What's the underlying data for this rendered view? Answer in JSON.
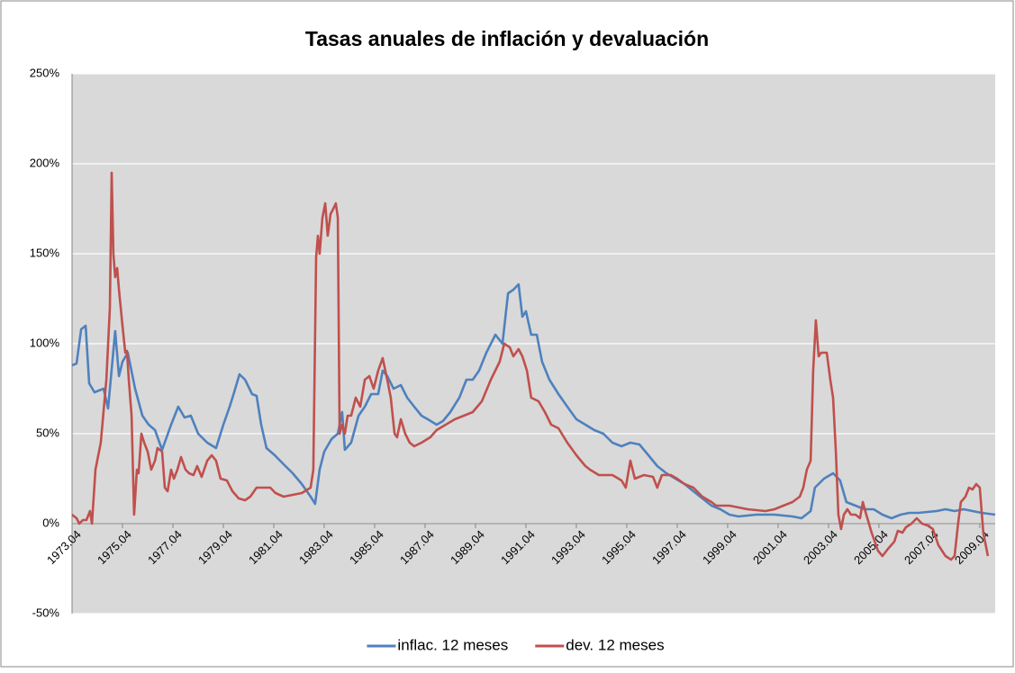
{
  "chart_data": {
    "type": "line",
    "title": "Tasas anuales de inflación y devaluación",
    "xlim": [
      1973.25,
      2009.86
    ],
    "xticks": [
      {
        "value": 1973.25,
        "label": "1973.04"
      },
      {
        "value": 1975.25,
        "label": "1975.04"
      },
      {
        "value": 1977.25,
        "label": "1977.04"
      },
      {
        "value": 1979.25,
        "label": "1979.04"
      },
      {
        "value": 1981.25,
        "label": "1981.04"
      },
      {
        "value": 1983.25,
        "label": "1983.04"
      },
      {
        "value": 1985.25,
        "label": "1985.04"
      },
      {
        "value": 1987.25,
        "label": "1987.04"
      },
      {
        "value": 1989.25,
        "label": "1989.04"
      },
      {
        "value": 1991.25,
        "label": "1991.04"
      },
      {
        "value": 1993.25,
        "label": "1993.04"
      },
      {
        "value": 1995.25,
        "label": "1995.04"
      },
      {
        "value": 1997.25,
        "label": "1997.04"
      },
      {
        "value": 1999.25,
        "label": "1999.04"
      },
      {
        "value": 2001.25,
        "label": "2001.04"
      },
      {
        "value": 2003.25,
        "label": "2003.04"
      },
      {
        "value": 2005.25,
        "label": "2005.04"
      },
      {
        "value": 2007.25,
        "label": "2007.04"
      },
      {
        "value": 2009.25,
        "label": "2009.04"
      }
    ],
    "ylim": [
      -50,
      250
    ],
    "yticks": [
      {
        "value": -50,
        "label": "-50%"
      },
      {
        "value": 0,
        "label": "0%"
      },
      {
        "value": 50,
        "label": "50%"
      },
      {
        "value": 100,
        "label": "100%"
      },
      {
        "value": 150,
        "label": "150%"
      },
      {
        "value": 200,
        "label": "200%"
      },
      {
        "value": 250,
        "label": "250%"
      }
    ],
    "grid": true,
    "legend": "bottom",
    "series": [
      {
        "name": "inflac. 12 meses",
        "color": "#4f81bd",
        "x": [
          1973.25,
          1973.43,
          1973.61,
          1973.79,
          1973.93,
          1974.14,
          1974.5,
          1974.68,
          1974.96,
          1975.11,
          1975.25,
          1975.46,
          1975.75,
          1976.04,
          1976.29,
          1976.54,
          1976.82,
          1977.18,
          1977.46,
          1977.71,
          1977.96,
          1978.25,
          1978.61,
          1978.96,
          1979.25,
          1979.5,
          1979.68,
          1979.89,
          1980.11,
          1980.39,
          1980.57,
          1980.75,
          1980.96,
          1981.29,
          1981.64,
          1982.0,
          1982.36,
          1982.71,
          1982.89,
          1983.07,
          1983.25,
          1983.54,
          1983.79,
          1983.96,
          1984.07,
          1984.32,
          1984.61,
          1984.86,
          1985.11,
          1985.39,
          1985.57,
          1985.75,
          1986.0,
          1986.29,
          1986.54,
          1986.82,
          1987.11,
          1987.36,
          1987.71,
          1987.96,
          1988.25,
          1988.61,
          1988.89,
          1989.14,
          1989.39,
          1989.68,
          1990.04,
          1990.32,
          1990.54,
          1990.75,
          1990.96,
          1991.11,
          1991.25,
          1991.46,
          1991.68,
          1991.89,
          1992.18,
          1992.54,
          1992.89,
          1993.25,
          1993.61,
          1993.96,
          1994.32,
          1994.68,
          1995.04,
          1995.39,
          1995.75,
          1996.11,
          1996.46,
          1996.82,
          1997.18,
          1997.54,
          1997.89,
          1998.25,
          1998.61,
          1998.96,
          1999.32,
          1999.68,
          2000.39,
          2001.11,
          2001.82,
          2002.18,
          2002.54,
          2002.71,
          2003.07,
          2003.43,
          2003.71,
          2003.96,
          2004.32,
          2004.68,
          2005.04,
          2005.39,
          2005.75,
          2006.11,
          2006.46,
          2006.82,
          2007.54,
          2007.89,
          2008.25,
          2008.61,
          2008.96,
          2009.32,
          2009.86
        ],
        "values": [
          88,
          89,
          108,
          110,
          78,
          73,
          75,
          64,
          107,
          82,
          90,
          95,
          75,
          60,
          55,
          52,
          41,
          55,
          65,
          59,
          60,
          50,
          45,
          42,
          55,
          65,
          73,
          83,
          80,
          72,
          71,
          55,
          42,
          38,
          33,
          28,
          22,
          15,
          11,
          30,
          40,
          47,
          50,
          62,
          41,
          45,
          60,
          65,
          72,
          72,
          85,
          82,
          75,
          77,
          70,
          65,
          60,
          58,
          55,
          57,
          62,
          70,
          80,
          80,
          85,
          95,
          105,
          100,
          128,
          130,
          133,
          115,
          118,
          105,
          105,
          90,
          80,
          72,
          65,
          58,
          55,
          52,
          50,
          45,
          43,
          45,
          44,
          38,
          32,
          28,
          25,
          22,
          18,
          14,
          10,
          8,
          5,
          4,
          5,
          5,
          4,
          3,
          7,
          20,
          25,
          28,
          24,
          12,
          10,
          8,
          8,
          5,
          3,
          5,
          6,
          6,
          7,
          8,
          7,
          8,
          7,
          6,
          5
        ]
      },
      {
        "name": "dev. 12 meses",
        "color": "#c0504d",
        "x": [
          1973.25,
          1973.43,
          1973.54,
          1973.68,
          1973.82,
          1973.96,
          1974.04,
          1974.18,
          1974.39,
          1974.61,
          1974.75,
          1974.82,
          1974.89,
          1974.96,
          1975.04,
          1975.11,
          1975.25,
          1975.36,
          1975.43,
          1975.5,
          1975.61,
          1975.71,
          1975.82,
          1975.89,
          1976.0,
          1976.11,
          1976.25,
          1976.39,
          1976.54,
          1976.64,
          1976.82,
          1976.93,
          1977.04,
          1977.18,
          1977.29,
          1977.43,
          1977.57,
          1977.75,
          1977.89,
          1978.07,
          1978.21,
          1978.39,
          1978.61,
          1978.79,
          1978.96,
          1979.14,
          1979.39,
          1979.61,
          1979.86,
          1980.11,
          1980.32,
          1980.57,
          1980.82,
          1981.11,
          1981.32,
          1981.64,
          1982.0,
          1982.36,
          1982.71,
          1982.82,
          1982.93,
          1983.0,
          1983.07,
          1983.18,
          1983.29,
          1983.39,
          1983.5,
          1983.61,
          1983.71,
          1983.79,
          1983.86,
          1983.96,
          1984.07,
          1984.18,
          1984.32,
          1984.5,
          1984.68,
          1984.86,
          1985.04,
          1985.21,
          1985.39,
          1985.57,
          1985.75,
          1985.89,
          1986.04,
          1986.14,
          1986.29,
          1986.46,
          1986.64,
          1986.82,
          1987.11,
          1987.46,
          1987.71,
          1988.07,
          1988.43,
          1988.79,
          1989.14,
          1989.5,
          1989.86,
          1990.21,
          1990.39,
          1990.61,
          1990.75,
          1990.96,
          1991.11,
          1991.29,
          1991.46,
          1991.75,
          1992.0,
          1992.25,
          1992.54,
          1992.89,
          1993.25,
          1993.61,
          1993.79,
          1994.14,
          1994.68,
          1995.04,
          1995.21,
          1995.39,
          1995.57,
          1995.93,
          1996.29,
          1996.46,
          1996.64,
          1997.0,
          1997.25,
          1997.54,
          1997.89,
          1998.25,
          1998.61,
          1998.79,
          1998.96,
          1999.32,
          2000.04,
          2000.75,
          2001.11,
          2001.46,
          2001.82,
          2002.11,
          2002.25,
          2002.39,
          2002.54,
          2002.64,
          2002.75,
          2002.86,
          2002.96,
          2003.18,
          2003.32,
          2003.43,
          2003.54,
          2003.64,
          2003.75,
          2003.86,
          2004.0,
          2004.14,
          2004.32,
          2004.5,
          2004.61,
          2004.75,
          2004.96,
          2005.21,
          2005.39,
          2005.61,
          2005.86,
          2006.0,
          2006.18,
          2006.32,
          2006.54,
          2006.75,
          2006.96,
          2007.18,
          2007.39,
          2007.61,
          2007.89,
          2008.11,
          2008.25,
          2008.39,
          2008.5,
          2008.68,
          2008.82,
          2008.96,
          2009.11,
          2009.25,
          2009.39,
          2009.57
        ],
        "values": [
          5,
          3,
          0,
          2,
          2,
          7,
          0,
          30,
          45,
          80,
          120,
          195,
          150,
          137,
          142,
          130,
          110,
          95,
          96,
          80,
          60,
          5,
          30,
          28,
          50,
          45,
          40,
          30,
          35,
          42,
          40,
          20,
          18,
          30,
          25,
          30,
          37,
          30,
          28,
          27,
          32,
          26,
          35,
          38,
          35,
          25,
          24,
          18,
          14,
          13,
          15,
          20,
          20,
          20,
          17,
          15,
          16,
          17,
          20,
          30,
          148,
          160,
          150,
          170,
          178,
          160,
          172,
          175,
          178,
          170,
          50,
          55,
          50,
          60,
          60,
          70,
          65,
          80,
          82,
          75,
          85,
          92,
          80,
          70,
          50,
          48,
          58,
          50,
          45,
          43,
          45,
          48,
          52,
          55,
          58,
          60,
          62,
          68,
          80,
          90,
          100,
          98,
          93,
          97,
          93,
          85,
          70,
          68,
          62,
          55,
          53,
          45,
          38,
          32,
          30,
          27,
          27,
          24,
          20,
          35,
          25,
          27,
          26,
          20,
          27,
          27,
          25,
          22,
          20,
          15,
          12,
          10,
          10,
          10,
          8,
          7,
          8,
          10,
          12,
          15,
          20,
          30,
          35,
          85,
          113,
          93,
          95,
          95,
          80,
          70,
          40,
          5,
          -3,
          5,
          8,
          5,
          5,
          3,
          12,
          5,
          -5,
          -15,
          -18,
          -14,
          -10,
          -4,
          -5,
          -2,
          0,
          3,
          0,
          -1,
          -3,
          -12,
          -18,
          -20,
          -18,
          0,
          12,
          15,
          20,
          19,
          22,
          20,
          -5,
          -18
        ]
      }
    ]
  }
}
